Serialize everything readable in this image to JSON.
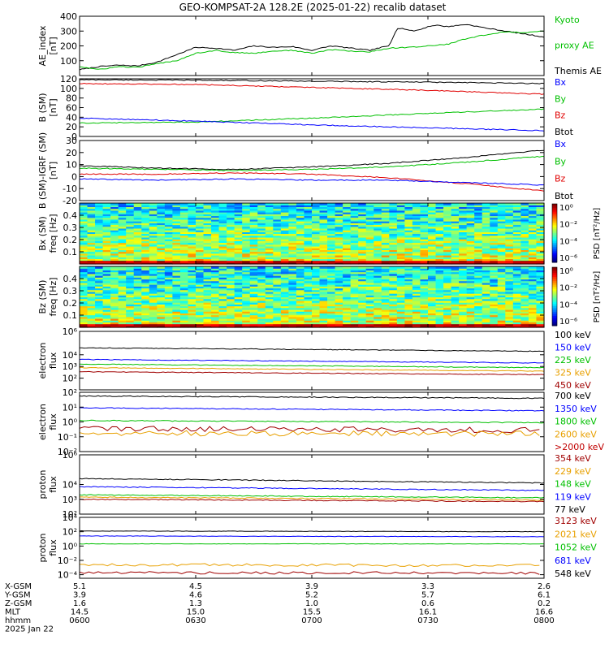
{
  "title": "GEO-KOMPSAT-2A 128.2E (2025-01-22) recalib dataset",
  "chart_data": [
    {
      "id": "ae",
      "type": "line",
      "ylabel": [
        "AE_index",
        "[nT]"
      ],
      "ylim": [
        0,
        400
      ],
      "yticks": [
        {
          "v": 100,
          "label": "100"
        },
        {
          "v": 200,
          "label": "200"
        },
        {
          "v": 300,
          "label": "300"
        },
        {
          "v": 400,
          "label": "400"
        }
      ],
      "legend": [
        {
          "name": "Kyoto",
          "color": "#00c000"
        },
        {
          "name": "proxy AE",
          "color": "#00c000"
        },
        {
          "name": "Themis AE",
          "color": "#000000"
        }
      ],
      "series": [
        {
          "name": "Themis AE",
          "color": "#000000",
          "x": [
            0,
            5,
            10,
            15,
            20,
            25,
            30,
            35,
            40,
            45,
            50,
            55,
            60,
            65,
            70,
            75,
            78,
            80,
            82,
            84,
            86,
            88,
            90,
            92,
            95,
            100,
            105,
            110,
            115,
            120
          ],
          "y": [
            40,
            60,
            70,
            65,
            90,
            140,
            190,
            185,
            170,
            200,
            190,
            195,
            170,
            200,
            185,
            170,
            190,
            200,
            320,
            315,
            300,
            310,
            330,
            340,
            330,
            345,
            320,
            300,
            280,
            260
          ]
        },
        {
          "name": "Kyoto proxy AE",
          "color": "#00c000",
          "x": [
            0,
            5,
            10,
            15,
            20,
            25,
            30,
            35,
            40,
            45,
            50,
            55,
            60,
            65,
            70,
            75,
            80,
            85,
            90,
            95,
            100,
            105,
            110,
            115,
            120
          ],
          "y": [
            60,
            40,
            60,
            55,
            80,
            100,
            150,
            170,
            155,
            150,
            165,
            170,
            150,
            175,
            165,
            160,
            185,
            190,
            200,
            210,
            250,
            275,
            295,
            290,
            300
          ]
        }
      ]
    },
    {
      "id": "bsm",
      "type": "line",
      "ylabel": [
        "B (SM)",
        "[nT]"
      ],
      "ylim": [
        0,
        120
      ],
      "yticks": [
        {
          "v": 0,
          "label": "0"
        },
        {
          "v": 20,
          "label": "20"
        },
        {
          "v": 40,
          "label": "40"
        },
        {
          "v": 60,
          "label": "60"
        },
        {
          "v": 80,
          "label": "80"
        },
        {
          "v": 100,
          "label": "100"
        },
        {
          "v": 120,
          "label": "120"
        }
      ],
      "legend": [
        {
          "name": "Bx",
          "color": "#0000ff"
        },
        {
          "name": "By",
          "color": "#00c000"
        },
        {
          "name": "Bz",
          "color": "#e00000"
        },
        {
          "name": "Btot",
          "color": "#000000"
        }
      ],
      "series": [
        {
          "name": "Btot",
          "color": "#000000",
          "x": [
            0,
            30,
            60,
            90,
            120
          ],
          "y": [
            118,
            117,
            115,
            113,
            110
          ]
        },
        {
          "name": "Bz",
          "color": "#e00000",
          "x": [
            0,
            30,
            60,
            90,
            120
          ],
          "y": [
            110,
            108,
            102,
            96,
            88
          ]
        },
        {
          "name": "By",
          "color": "#00c000",
          "x": [
            0,
            30,
            60,
            90,
            120
          ],
          "y": [
            28,
            30,
            38,
            48,
            57
          ]
        },
        {
          "name": "Bx",
          "color": "#0000ff",
          "x": [
            0,
            30,
            60,
            90,
            120
          ],
          "y": [
            38,
            32,
            24,
            18,
            12
          ]
        }
      ]
    },
    {
      "id": "bigrf",
      "type": "line",
      "ylabel": [
        "B (SM)-IGRF (SM)",
        "[nT]"
      ],
      "ylim": [
        -20,
        30
      ],
      "yticks": [
        {
          "v": -20,
          "label": "-20"
        },
        {
          "v": -10,
          "label": "-10"
        },
        {
          "v": 0,
          "label": "0"
        },
        {
          "v": 10,
          "label": "10"
        },
        {
          "v": 20,
          "label": "20"
        },
        {
          "v": 30,
          "label": "30"
        }
      ],
      "legend": [
        {
          "name": "Bx",
          "color": "#0000ff"
        },
        {
          "name": "By",
          "color": "#00c000"
        },
        {
          "name": "Bz",
          "color": "#e00000"
        },
        {
          "name": "Btot",
          "color": "#000000"
        }
      ],
      "series": [
        {
          "name": "Btot",
          "color": "#000000",
          "x": [
            0,
            20,
            40,
            60,
            80,
            100,
            120
          ],
          "y": [
            9,
            7,
            6,
            8,
            11,
            16,
            22
          ]
        },
        {
          "name": "By",
          "color": "#00c000",
          "x": [
            0,
            20,
            40,
            60,
            80,
            100,
            120
          ],
          "y": [
            7,
            6,
            5,
            6,
            8,
            12,
            17
          ]
        },
        {
          "name": "Bz",
          "color": "#e00000",
          "x": [
            0,
            20,
            40,
            60,
            80,
            100,
            120
          ],
          "y": [
            2,
            2,
            3,
            2,
            -1,
            -6,
            -12
          ]
        },
        {
          "name": "Bx",
          "color": "#0000ff",
          "x": [
            0,
            20,
            40,
            60,
            80,
            100,
            120
          ],
          "y": [
            -2,
            -3,
            -2,
            -3,
            -3,
            -5,
            -7
          ]
        }
      ]
    },
    {
      "id": "bxspec",
      "type": "heatmap",
      "ylabel": [
        "Bx (SM)",
        "freq [Hz]"
      ],
      "ylim": [
        0,
        0.5
      ],
      "yticks": [
        {
          "v": 0.1,
          "label": "0.1"
        },
        {
          "v": 0.2,
          "label": "0.2"
        },
        {
          "v": 0.3,
          "label": "0.3"
        },
        {
          "v": 0.4,
          "label": "0.4"
        }
      ],
      "colorbar": {
        "label": "PSD [nT²/Hz]",
        "ticks": [
          "10⁰",
          "10⁻²",
          "10⁻⁴",
          "10⁻⁶"
        ]
      }
    },
    {
      "id": "bzspec",
      "type": "heatmap",
      "ylabel": [
        "Bz (SM)",
        "freq [Hz]"
      ],
      "ylim": [
        0,
        0.5
      ],
      "yticks": [
        {
          "v": 0.1,
          "label": "0.1"
        },
        {
          "v": 0.2,
          "label": "0.2"
        },
        {
          "v": 0.3,
          "label": "0.3"
        },
        {
          "v": 0.4,
          "label": "0.4"
        }
      ],
      "colorbar": {
        "label": "PSD [nT²/Hz]",
        "ticks": [
          "10⁰",
          "10⁻²",
          "10⁻⁴",
          "10⁻⁶"
        ]
      }
    },
    {
      "id": "elec1",
      "type": "line",
      "log": true,
      "ylabel": [
        "electron",
        "flux"
      ],
      "ylim": [
        1,
        6
      ],
      "yticks": [
        {
          "v": 2,
          "label": "10²"
        },
        {
          "v": 3,
          "label": "10³"
        },
        {
          "v": 4,
          "label": "10⁴"
        },
        {
          "v": 6,
          "label": "10⁶"
        }
      ],
      "legend": [
        {
          "name": "100 keV",
          "color": "#000000"
        },
        {
          "name": "150 keV",
          "color": "#0000ff"
        },
        {
          "name": "225 keV",
          "color": "#00c000"
        },
        {
          "name": "325 keV",
          "color": "#e8a000"
        },
        {
          "name": "450 keV",
          "color": "#a00000"
        }
      ],
      "series": [
        {
          "name": "100 keV",
          "color": "#000000",
          "x": [
            0,
            120
          ],
          "y": [
            4.6,
            4.3
          ]
        },
        {
          "name": "150 keV",
          "color": "#0000ff",
          "x": [
            0,
            120
          ],
          "y": [
            3.6,
            3.3
          ]
        },
        {
          "name": "225 keV",
          "color": "#00c000",
          "x": [
            0,
            120
          ],
          "y": [
            3.2,
            2.9
          ]
        },
        {
          "name": "325 keV",
          "color": "#e8a000",
          "x": [
            0,
            120
          ],
          "y": [
            2.9,
            2.6
          ]
        },
        {
          "name": "450 keV",
          "color": "#a00000",
          "x": [
            0,
            120
          ],
          "y": [
            2.55,
            2.3
          ]
        }
      ]
    },
    {
      "id": "elec2",
      "type": "line",
      "log": true,
      "ylabel": [
        "electron",
        "flux"
      ],
      "ylim": [
        -2,
        2
      ],
      "yticks": [
        {
          "v": -2,
          "label": "10⁻²"
        },
        {
          "v": -1,
          "label": "10⁻¹"
        },
        {
          "v": 0,
          "label": "10⁰"
        },
        {
          "v": 1,
          "label": "10¹"
        },
        {
          "v": 2,
          "label": "10²"
        }
      ],
      "legend": [
        {
          "name": "700 keV",
          "color": "#000000"
        },
        {
          "name": "1350 keV",
          "color": "#0000ff"
        },
        {
          "name": "1800 keV",
          "color": "#00c000"
        },
        {
          "name": "2600 keV",
          "color": "#e8a000"
        },
        {
          "name": ">2000 keV",
          "color": "#c00000"
        }
      ],
      "series": [
        {
          "name": "700 keV",
          "color": "#000000",
          "x": [
            0,
            120
          ],
          "y": [
            1.75,
            1.6
          ]
        },
        {
          "name": "1350 keV",
          "color": "#0000ff",
          "x": [
            0,
            120
          ],
          "y": [
            0.95,
            0.75
          ]
        },
        {
          "name": "1800 keV",
          "color": "#00c000",
          "x": [
            0,
            120
          ],
          "y": [
            0.1,
            -0.05
          ]
        },
        {
          "name": ">2000 keV",
          "color": "#a00000",
          "x": [
            0,
            120
          ],
          "y": [
            -0.45,
            -0.55
          ]
        },
        {
          "name": "2600 keV",
          "color": "#e8a000",
          "x": [
            0,
            120
          ],
          "y": [
            -0.75,
            -0.8
          ]
        }
      ]
    },
    {
      "id": "prot1",
      "type": "line",
      "log": true,
      "ylabel": [
        "proton",
        "flux"
      ],
      "ylim": [
        2,
        6
      ],
      "yticks": [
        {
          "v": 2,
          "label": "10²"
        },
        {
          "v": 3,
          "label": "10³"
        },
        {
          "v": 4,
          "label": "10⁴"
        },
        {
          "v": 6,
          "label": "10⁶"
        }
      ],
      "legend": [
        {
          "name": "354 keV",
          "color": "#a00000"
        },
        {
          "name": "229 keV",
          "color": "#e8a000"
        },
        {
          "name": "148 keV",
          "color": "#00c000"
        },
        {
          "name": "119 keV",
          "color": "#0000ff"
        },
        {
          "name": "77 keV",
          "color": "#000000"
        }
      ],
      "series": [
        {
          "name": "77 keV",
          "color": "#000000",
          "x": [
            0,
            120
          ],
          "y": [
            4.4,
            4.1
          ]
        },
        {
          "name": "119 keV",
          "color": "#0000ff",
          "x": [
            0,
            120
          ],
          "y": [
            3.85,
            3.6
          ]
        },
        {
          "name": "148 keV",
          "color": "#00c000",
          "x": [
            0,
            120
          ],
          "y": [
            3.3,
            3.1
          ]
        },
        {
          "name": "229 keV",
          "color": "#e8a000",
          "x": [
            0,
            120
          ],
          "y": [
            3.15,
            2.95
          ]
        },
        {
          "name": "354 keV",
          "color": "#a00000",
          "x": [
            0,
            120
          ],
          "y": [
            3.0,
            2.85
          ]
        }
      ]
    },
    {
      "id": "prot2",
      "type": "line",
      "log": true,
      "ylabel": [
        "proton",
        "flux"
      ],
      "ylim": [
        -4.5,
        4
      ],
      "yticks": [
        {
          "v": -4,
          "label": "10⁻⁴"
        },
        {
          "v": -2,
          "label": "10⁻²"
        },
        {
          "v": 0,
          "label": "10⁰"
        },
        {
          "v": 2,
          "label": "10²"
        },
        {
          "v": 4,
          "label": "10⁴"
        }
      ],
      "legend": [
        {
          "name": "3123 keV",
          "color": "#a00000"
        },
        {
          "name": "2021 keV",
          "color": "#e8a000"
        },
        {
          "name": "1052 keV",
          "color": "#00c000"
        },
        {
          "name": "681 keV",
          "color": "#0000ff"
        },
        {
          "name": "548 keV",
          "color": "#000000"
        }
      ],
      "series": [
        {
          "name": "548 keV",
          "color": "#000000",
          "x": [
            0,
            120
          ],
          "y": [
            2.1,
            2.0
          ]
        },
        {
          "name": "681 keV",
          "color": "#0000ff",
          "x": [
            0,
            120
          ],
          "y": [
            1.4,
            1.3
          ]
        },
        {
          "name": "1052 keV",
          "color": "#00c000",
          "x": [
            0,
            120
          ],
          "y": [
            0.3,
            0.3
          ]
        },
        {
          "name": "2021 keV",
          "color": "#e8a000",
          "x": [
            0,
            120
          ],
          "y": [
            -2.6,
            -2.7
          ]
        },
        {
          "name": "3123 keV",
          "color": "#a00000",
          "x": [
            0,
            120
          ],
          "y": [
            -3.7,
            -3.8
          ]
        }
      ]
    }
  ],
  "time_axis": {
    "minutes_range": [
      0,
      120
    ],
    "row_labels": [
      "X-GSM",
      "Y-GSM",
      "Z-GSM",
      "MLT",
      "hhmm"
    ],
    "date_label": "2025 Jan 22",
    "ticks": [
      {
        "t": 0,
        "values": [
          "5.1",
          "3.9",
          "1.6",
          "14.5",
          "0600"
        ]
      },
      {
        "t": 30,
        "values": [
          "4.5",
          "4.6",
          "1.3",
          "15.0",
          "0630"
        ]
      },
      {
        "t": 60,
        "values": [
          "3.9",
          "5.2",
          "1.0",
          "15.5",
          "0700"
        ]
      },
      {
        "t": 90,
        "values": [
          "3.3",
          "5.7",
          "0.6",
          "16.1",
          "0730"
        ]
      },
      {
        "t": 120,
        "values": [
          "2.6",
          "6.1",
          "0.2",
          "16.6",
          "0800"
        ]
      }
    ]
  }
}
